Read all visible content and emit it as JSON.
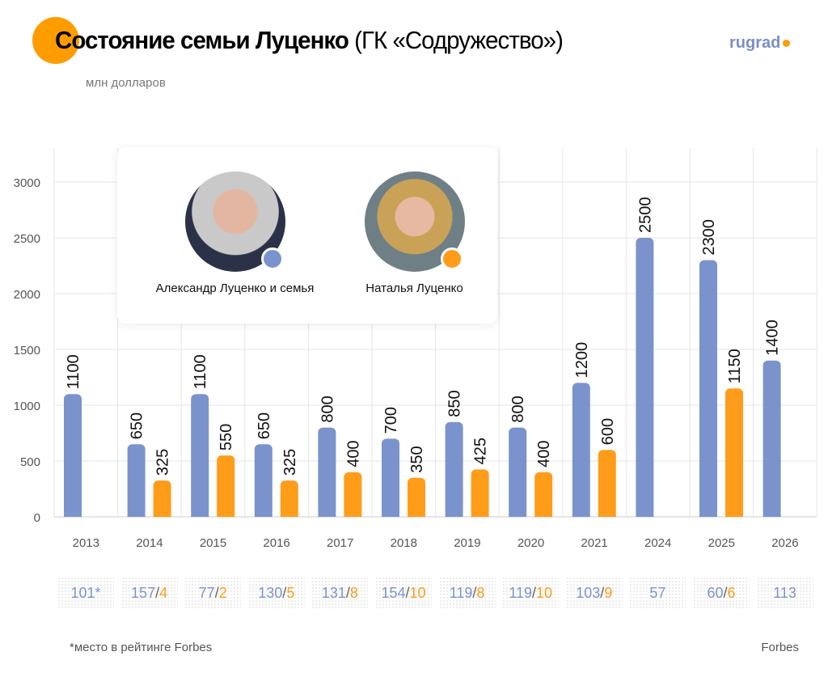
{
  "header": {
    "title_bold": "Состояние семьи Луценко",
    "title_rest": "(ГК «Содружество»)",
    "subtitle": "млн долларов",
    "logo": "rugrad"
  },
  "legend": [
    {
      "name": "Александр Луценко и семья",
      "color": "#7b93cc"
    },
    {
      "name": "Наталья Луценко",
      "color": "#ff9c1a"
    }
  ],
  "chart_data": {
    "type": "bar",
    "categories": [
      "2013",
      "2014",
      "2015",
      "2016",
      "2017",
      "2018",
      "2019",
      "2020",
      "2021",
      "2024",
      "2025",
      "2026"
    ],
    "series": [
      {
        "name": "Александр Луценко и семья",
        "color": "#7b93cc",
        "values": [
          1100,
          650,
          1100,
          650,
          800,
          700,
          850,
          800,
          1200,
          2500,
          2300,
          1400
        ]
      },
      {
        "name": "Наталья Луценко",
        "color": "#ff9c1a",
        "values": [
          null,
          325,
          550,
          325,
          400,
          350,
          425,
          400,
          600,
          null,
          1150,
          null
        ]
      }
    ],
    "yticks": [
      0,
      500,
      1000,
      1500,
      2000,
      2500,
      3000
    ],
    "ylim": [
      0,
      3000
    ],
    "grid": true,
    "ylabel": "млн долларов"
  },
  "rankings": [
    [
      "101*"
    ],
    [
      "157",
      "4"
    ],
    [
      "77",
      "2"
    ],
    [
      "130",
      "5"
    ],
    [
      "131",
      "8"
    ],
    [
      "154",
      "10"
    ],
    [
      "119",
      "8"
    ],
    [
      "119",
      "10"
    ],
    [
      "103",
      "9"
    ],
    [
      "57"
    ],
    [
      "60",
      "6"
    ],
    [
      "113"
    ]
  ],
  "footer": {
    "note": "*место в рейтинге Forbes",
    "source": "Forbes"
  }
}
